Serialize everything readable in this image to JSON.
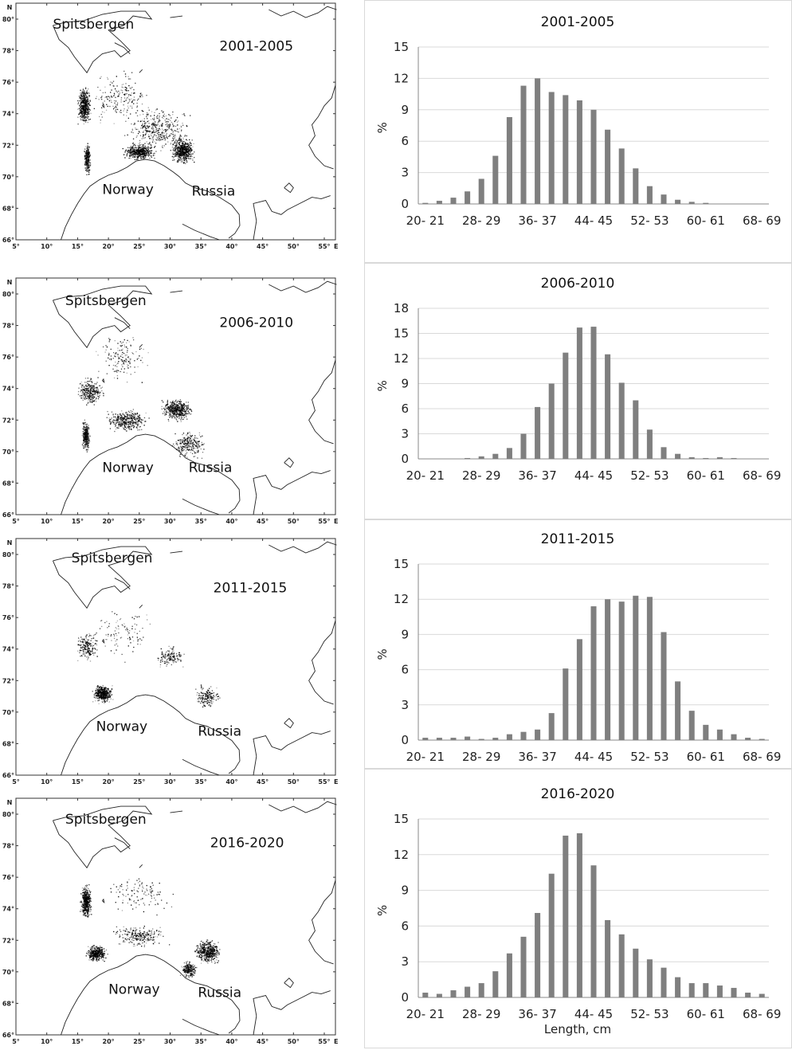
{
  "maps": [
    {
      "period": "2001-2005",
      "labels": {
        "spitsbergen": "Spitsbergen",
        "norway": "Norway",
        "russia": "Russia"
      }
    },
    {
      "period": "2006-2010",
      "labels": {
        "spitsbergen": "Spitsbergen",
        "norway": "Norway",
        "russia": "Russia"
      }
    },
    {
      "period": "2011-2015",
      "labels": {
        "spitsbergen": "Spitsbergen",
        "norway": "Norway",
        "russia": "Russia"
      }
    },
    {
      "period": "2016-2020",
      "labels": {
        "spitsbergen": "Spitsbergen",
        "norway": "Norway",
        "russia": "Russia"
      }
    }
  ],
  "map_axes": {
    "lat_ticks": [
      "80°",
      "78°",
      "76°",
      "74°",
      "72°",
      "70°",
      "68°",
      "66°"
    ],
    "lon_ticks": [
      "5°",
      "10°",
      "15°",
      "20°",
      "25°",
      "30°",
      "35°",
      "40°",
      "45°",
      "50°",
      "55°"
    ],
    "north_label": "N",
    "east_label": "E"
  },
  "chart_data": [
    {
      "type": "bar",
      "title": "2001-2005",
      "ylabel": "%",
      "xlabel": "",
      "ylim": [
        0,
        15
      ],
      "yticks": [
        0,
        3,
        6,
        9,
        12,
        15
      ],
      "grid": true,
      "bar_color": "#7f7f7f",
      "categories": [
        "20- 21",
        "22- 23",
        "24- 25",
        "26- 27",
        "28- 29",
        "30- 31",
        "32- 33",
        "34- 35",
        "36- 37",
        "38- 39",
        "40- 41",
        "42- 43",
        "44- 45",
        "46- 47",
        "48- 49",
        "50- 51",
        "52- 53",
        "54- 55",
        "56- 57",
        "58- 59",
        "60- 61",
        "62- 63",
        "64- 65",
        "66- 67",
        "68- 69"
      ],
      "tick_labels": [
        "20- 21",
        "28- 29",
        "36- 37",
        "44- 45",
        "52- 53",
        "60- 61",
        "68- 69"
      ],
      "values": [
        0.1,
        0.3,
        0.6,
        1.2,
        2.4,
        4.6,
        8.3,
        11.3,
        12.0,
        10.7,
        10.4,
        9.9,
        9.0,
        7.1,
        5.3,
        3.4,
        1.7,
        0.9,
        0.4,
        0.2,
        0.1,
        0,
        0,
        0,
        0
      ]
    },
    {
      "type": "bar",
      "title": "2006-2010",
      "ylabel": "%",
      "xlabel": "",
      "ylim": [
        0,
        18
      ],
      "yticks": [
        0,
        3,
        6,
        9,
        12,
        15,
        18
      ],
      "grid": true,
      "bar_color": "#7f7f7f",
      "categories": [
        "20- 21",
        "22- 23",
        "24- 25",
        "26- 27",
        "28- 29",
        "30- 31",
        "32- 33",
        "34- 35",
        "36- 37",
        "38- 39",
        "40- 41",
        "42- 43",
        "44- 45",
        "46- 47",
        "48- 49",
        "50- 51",
        "52- 53",
        "54- 55",
        "56- 57",
        "58- 59",
        "60- 61",
        "62- 63",
        "64- 65",
        "66- 67",
        "68- 69"
      ],
      "tick_labels": [
        "20- 21",
        "28- 29",
        "36- 37",
        "44- 45",
        "52- 53",
        "60- 61",
        "68- 69"
      ],
      "values": [
        0,
        0,
        0,
        0.1,
        0.3,
        0.6,
        1.3,
        3.0,
        6.2,
        9.0,
        12.7,
        15.7,
        15.8,
        12.5,
        9.1,
        7.0,
        3.5,
        1.4,
        0.6,
        0.2,
        0.1,
        0.2,
        0.1,
        0,
        0
      ]
    },
    {
      "type": "bar",
      "title": "2011-2015",
      "ylabel": "%",
      "xlabel": "",
      "ylim": [
        0,
        15
      ],
      "yticks": [
        0,
        3,
        6,
        9,
        12,
        15
      ],
      "grid": true,
      "bar_color": "#7f7f7f",
      "categories": [
        "20- 21",
        "22- 23",
        "24- 25",
        "26- 27",
        "28- 29",
        "30- 31",
        "32- 33",
        "34- 35",
        "36- 37",
        "38- 39",
        "40- 41",
        "42- 43",
        "44- 45",
        "46- 47",
        "48- 49",
        "50- 51",
        "52- 53",
        "54- 55",
        "56- 57",
        "58- 59",
        "60- 61",
        "62- 63",
        "64- 65",
        "66- 67",
        "68- 69"
      ],
      "tick_labels": [
        "20- 21",
        "28- 29",
        "36- 37",
        "44- 45",
        "52- 53",
        "60- 61",
        "68- 69"
      ],
      "values": [
        0.2,
        0.2,
        0.2,
        0.3,
        0.1,
        0.2,
        0.5,
        0.7,
        0.9,
        2.3,
        6.1,
        8.6,
        11.4,
        12.0,
        11.8,
        12.3,
        12.2,
        9.2,
        5.0,
        2.5,
        1.3,
        0.9,
        0.5,
        0.2,
        0.1
      ]
    },
    {
      "type": "bar",
      "title": "2016-2020",
      "ylabel": "%",
      "xlabel": "Length, cm",
      "ylim": [
        0,
        15
      ],
      "yticks": [
        0,
        3,
        6,
        9,
        12,
        15
      ],
      "grid": true,
      "bar_color": "#7f7f7f",
      "categories": [
        "20- 21",
        "22- 23",
        "24- 25",
        "26- 27",
        "28- 29",
        "30- 31",
        "32- 33",
        "34- 35",
        "36- 37",
        "38- 39",
        "40- 41",
        "42- 43",
        "44- 45",
        "46- 47",
        "48- 49",
        "50- 51",
        "52- 53",
        "54- 55",
        "56- 57",
        "58- 59",
        "60- 61",
        "62- 63",
        "64- 65",
        "66- 67",
        "68- 69"
      ],
      "tick_labels": [
        "20- 21",
        "28- 29",
        "36- 37",
        "44- 45",
        "52- 53",
        "60- 61",
        "68- 69"
      ],
      "values": [
        0.4,
        0.3,
        0.6,
        0.9,
        1.2,
        2.2,
        3.7,
        5.1,
        7.1,
        10.4,
        13.6,
        13.8,
        11.1,
        6.5,
        5.3,
        4.1,
        3.2,
        2.5,
        1.7,
        1.2,
        1.2,
        1.0,
        0.8,
        0.4,
        0.3
      ]
    }
  ]
}
